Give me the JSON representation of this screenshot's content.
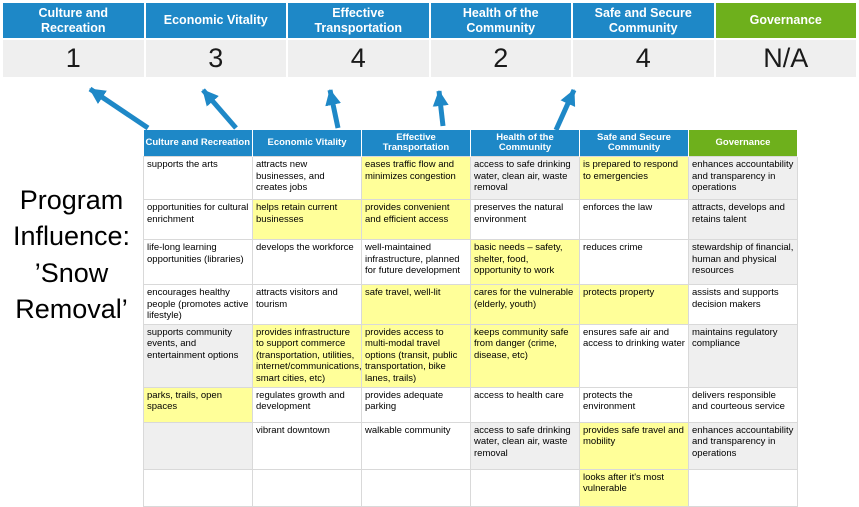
{
  "slide_title": "Program Influence: ’Snow Removal’",
  "program_label": {
    "text": "Program Influence: ’Snow Removal’",
    "lines": [
      "Program",
      "Influence:",
      "’Snow",
      "Removal’"
    ]
  },
  "colors": {
    "blue": "#1E88C7",
    "green": "#6EB01C",
    "yellow": "#FFFF99",
    "gray": "#EFEFEF",
    "score_bg": "#EFEFEF",
    "arrow": "#1E88C7",
    "border": "#D9D9D9"
  },
  "scoreboard": {
    "columns": [
      {
        "label": "Culture and Recreation",
        "score": "1",
        "color": "blue"
      },
      {
        "label": "Economic Vitality",
        "score": "3",
        "color": "blue"
      },
      {
        "label": "Effective Transportation",
        "score": "4",
        "color": "blue"
      },
      {
        "label": "Health of the Community",
        "score": "2",
        "color": "blue"
      },
      {
        "label": "Safe and Secure Community",
        "score": "4",
        "color": "blue"
      },
      {
        "label": "Governance",
        "score": "N/A",
        "color": "green"
      }
    ]
  },
  "arrows": {
    "count": 5,
    "direction": "up"
  },
  "matrix": {
    "headers": [
      {
        "label": "Culture and Recreation",
        "color": "blue"
      },
      {
        "label": "Economic Vitality",
        "color": "blue"
      },
      {
        "label": "Effective Transportation",
        "color": "blue"
      },
      {
        "label": "Health of the Community",
        "color": "blue"
      },
      {
        "label": "Safe and Secure Community",
        "color": "blue"
      },
      {
        "label": "Governance",
        "color": "green"
      }
    ],
    "rows": [
      [
        {
          "text": "supports the arts",
          "bg": "w"
        },
        {
          "text": "attracts new businesses, and creates jobs",
          "bg": "w"
        },
        {
          "text": "eases traffic flow and minimizes congestion",
          "bg": "y"
        },
        {
          "text": "access to safe drinking water, clean air, waste removal",
          "bg": "g"
        },
        {
          "text": "is prepared to respond to emergencies",
          "bg": "y"
        },
        {
          "text": "enhances accountability and transparency in operations",
          "bg": "g"
        }
      ],
      [
        {
          "text": "opportunities for cultural enrichment",
          "bg": "w"
        },
        {
          "text": "helps retain current businesses",
          "bg": "y"
        },
        {
          "text": "provides convenient and efficient access",
          "bg": "y"
        },
        {
          "text": "preserves the natural environment",
          "bg": "w"
        },
        {
          "text": "enforces the law",
          "bg": "w"
        },
        {
          "text": "attracts, develops and retains talent",
          "bg": "g"
        }
      ],
      [
        {
          "text": "life-long learning opportunities (libraries)",
          "bg": "w"
        },
        {
          "text": "develops the workforce",
          "bg": "w"
        },
        {
          "text": "well-maintained infrastructure, planned for future development",
          "bg": "w"
        },
        {
          "text": "basic needs – safety, shelter, food, opportunity to work",
          "bg": "y"
        },
        {
          "text": "reduces crime",
          "bg": "w"
        },
        {
          "text": "stewardship of financial, human and physical resources",
          "bg": "g"
        }
      ],
      [
        {
          "text": "encourages healthy people (promotes active lifestyle)",
          "bg": "w"
        },
        {
          "text": "attracts visitors and tourism",
          "bg": "w"
        },
        {
          "text": "safe travel, well-lit",
          "bg": "y"
        },
        {
          "text": "cares for the vulnerable (elderly, youth)",
          "bg": "y"
        },
        {
          "text": "protects property",
          "bg": "y"
        },
        {
          "text": "assists and supports decision makers",
          "bg": "w"
        }
      ],
      [
        {
          "text": "supports community events, and entertainment options",
          "bg": "g"
        },
        {
          "text": "provides infrastructure to support commerce (transportation, utilities, internet/communications, smart cities, etc)",
          "bg": "y"
        },
        {
          "text": "provides access to multi-modal travel options (transit, public transportation, bike lanes, trails)",
          "bg": "y"
        },
        {
          "text": "keeps community safe from danger (crime, disease, etc)",
          "bg": "y"
        },
        {
          "text": "ensures safe air and access to drinking water",
          "bg": "w"
        },
        {
          "text": "maintains regulatory compliance",
          "bg": "g"
        }
      ],
      [
        {
          "text": "parks, trails, open spaces",
          "bg": "y"
        },
        {
          "text": "regulates growth and development",
          "bg": "w"
        },
        {
          "text": "provides adequate parking",
          "bg": "w"
        },
        {
          "text": "access to health care",
          "bg": "w"
        },
        {
          "text": "protects the environment",
          "bg": "w"
        },
        {
          "text": "delivers responsible and courteous service",
          "bg": "w"
        }
      ],
      [
        {
          "text": "",
          "bg": "g"
        },
        {
          "text": "vibrant downtown",
          "bg": "w"
        },
        {
          "text": "walkable community",
          "bg": "w"
        },
        {
          "text": "access to safe drinking water, clean air, waste removal",
          "bg": "g"
        },
        {
          "text": "provides safe travel and mobility",
          "bg": "y"
        },
        {
          "text": "enhances accountability and transparency in operations",
          "bg": "g"
        }
      ],
      [
        {
          "text": "",
          "bg": "w"
        },
        {
          "text": "",
          "bg": "w"
        },
        {
          "text": "",
          "bg": "w"
        },
        {
          "text": "",
          "bg": "w"
        },
        {
          "text": "looks after it's most vulnerable",
          "bg": "y"
        },
        {
          "text": "",
          "bg": "w"
        }
      ]
    ]
  }
}
